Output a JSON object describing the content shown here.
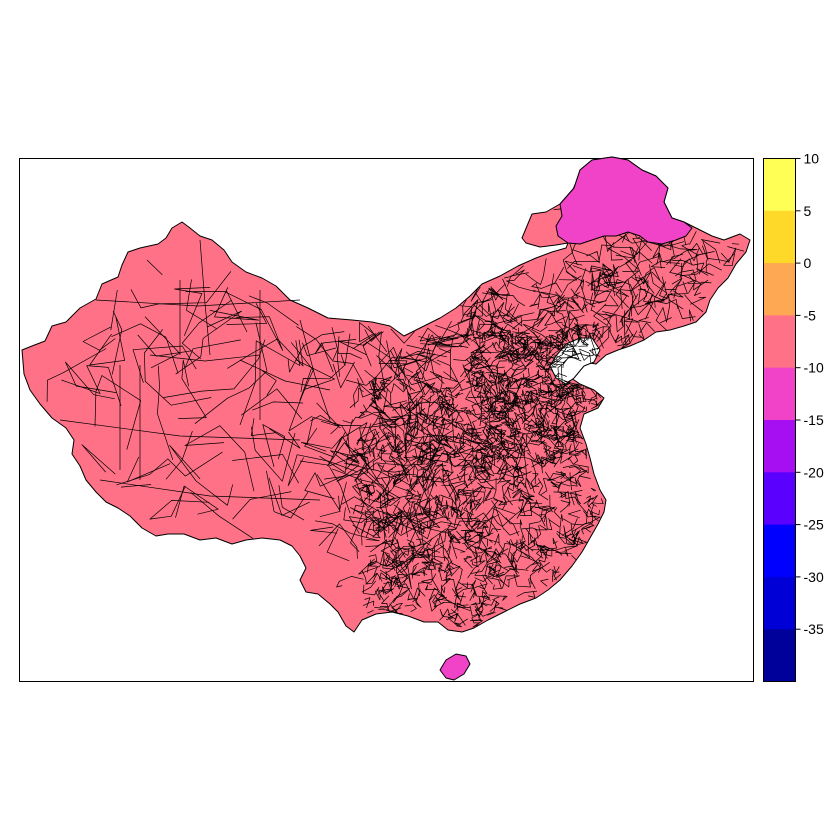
{
  "map": {
    "base_color": "#FF7186",
    "highlight_color": "#F043C8",
    "border_color": "#000000",
    "regions": [
      {
        "id": "mainland",
        "value_bin": "-10 to -5"
      },
      {
        "id": "northern-heilongjiang",
        "value_bin": "-15 to -10"
      },
      {
        "id": "hainan",
        "value_bin": "-15 to -10"
      }
    ]
  },
  "legend": {
    "breaks": [
      "10",
      "5",
      "0",
      "-5",
      "-10",
      "-15",
      "-20",
      "-25",
      "-30",
      "-35"
    ],
    "colors_top_to_bottom": [
      "#FFFF55",
      "#FFD92A",
      "#FFA853",
      "#FF7186",
      "#F043C8",
      "#A50FF1",
      "#5A00FF",
      "#0000FF",
      "#0000D6",
      "#00009A"
    ]
  }
}
